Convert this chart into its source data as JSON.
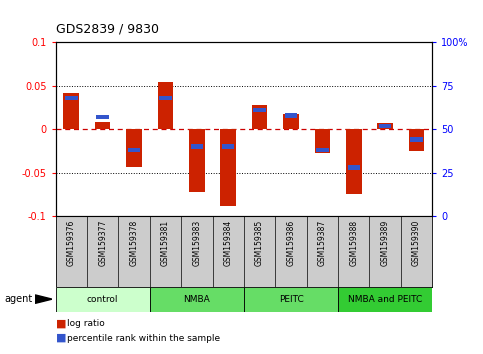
{
  "title": "GDS2839 / 9830",
  "samples": [
    "GSM159376",
    "GSM159377",
    "GSM159378",
    "GSM159381",
    "GSM159383",
    "GSM159384",
    "GSM159385",
    "GSM159386",
    "GSM159387",
    "GSM159388",
    "GSM159389",
    "GSM159390"
  ],
  "log_ratio": [
    0.042,
    0.008,
    -0.044,
    0.054,
    -0.072,
    -0.088,
    0.028,
    0.018,
    -0.028,
    -0.075,
    0.007,
    -0.025
  ],
  "percentile_rank": [
    68,
    57,
    38,
    68,
    40,
    40,
    61,
    58,
    38,
    28,
    52,
    44
  ],
  "groups": [
    {
      "label": "control",
      "indices": [
        0,
        1,
        2
      ]
    },
    {
      "label": "NMBA",
      "indices": [
        3,
        4,
        5
      ]
    },
    {
      "label": "PEITC",
      "indices": [
        6,
        7,
        8
      ]
    },
    {
      "label": "NMBA and PEITC",
      "indices": [
        9,
        10,
        11
      ]
    }
  ],
  "ylim": [
    -0.1,
    0.1
  ],
  "yticks_left": [
    -0.1,
    -0.05,
    0,
    0.05,
    0.1
  ],
  "yticks_right": [
    0,
    25,
    50,
    75,
    100
  ],
  "bar_color_red": "#cc2200",
  "bar_color_blue": "#3355cc",
  "bar_width": 0.5,
  "perc_bar_width": 0.4,
  "perc_bar_height": 0.005,
  "background_plot": "#ffffff",
  "agent_label": "agent",
  "legend_red_label": "log ratio",
  "legend_blue_label": "percentile rank within the sample",
  "group_colors": [
    "#ccffcc",
    "#66dd66",
    "#66dd66",
    "#33cc33"
  ],
  "zero_line_color": "#cc0000",
  "sample_bg": "#cccccc"
}
